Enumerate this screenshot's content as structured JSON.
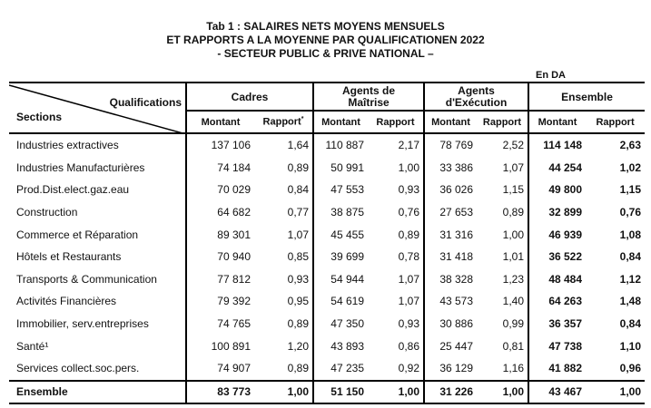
{
  "title": {
    "line1": "Tab 1 : SALAIRES NETS MOYENS MENSUELS",
    "line2": "ET RAPPORTS A LA MOYENNE PAR QUALIFICATIONEN 2022",
    "line3": "- SECTEUR PUBLIC & PRIVE NATIONAL –"
  },
  "unit": "En DA",
  "header": {
    "qualifications": "Qualifications",
    "sections": "Sections",
    "groups": [
      "Cadres",
      "Agents de\nMaîtrise",
      "Agents\nd'Exécution",
      "Ensemble"
    ],
    "montant": "Montant",
    "rapport": "Rapport",
    "rapport_note": "*"
  },
  "rows": [
    {
      "section": "Industries extractives",
      "v": [
        "137 106",
        "1,64",
        "110 887",
        "2,17",
        "78 769",
        "2,52",
        "114 148",
        "2,63"
      ]
    },
    {
      "section": "Industries Manufacturières",
      "v": [
        "74 184",
        "0,89",
        "50 991",
        "1,00",
        "33 386",
        "1,07",
        "44 254",
        "1,02"
      ]
    },
    {
      "section": "Prod.Dist.elect.gaz.eau",
      "v": [
        "70 029",
        "0,84",
        "47 553",
        "0,93",
        "36 026",
        "1,15",
        "49 800",
        "1,15"
      ]
    },
    {
      "section": "Construction",
      "v": [
        "64 682",
        "0,77",
        "38 875",
        "0,76",
        "27 653",
        "0,89",
        "32 899",
        "0,76"
      ]
    },
    {
      "section": "Commerce et Réparation",
      "v": [
        "89 301",
        "1,07",
        "45 455",
        "0,89",
        "31 316",
        "1,00",
        "46 939",
        "1,08"
      ]
    },
    {
      "section": "Hôtels et Restaurants",
      "v": [
        "70 940",
        "0,85",
        "39 699",
        "0,78",
        "31 418",
        "1,01",
        "36 522",
        "0,84"
      ]
    },
    {
      "section": "Transports & Communication",
      "v": [
        "77 812",
        "0,93",
        "54 944",
        "1,07",
        "38 328",
        "1,23",
        "48 484",
        "1,12"
      ]
    },
    {
      "section": "Activités Financières",
      "v": [
        "79 392",
        "0,95",
        "54 619",
        "1,07",
        "43 573",
        "1,40",
        "64 263",
        "1,48"
      ]
    },
    {
      "section": "Immobilier, serv.entreprises",
      "v": [
        "74 765",
        "0,89",
        "47 350",
        "0,93",
        "30 886",
        "0,99",
        "36 357",
        "0,84"
      ]
    },
    {
      "section": "Santé¹",
      "v": [
        "100 891",
        "1,20",
        "43 893",
        "0,86",
        "25 447",
        "0,81",
        "47 738",
        "1,10"
      ]
    },
    {
      "section": "Services collect.soc.pers.",
      "v": [
        "74 907",
        "0,89",
        "47 235",
        "0,92",
        "36 129",
        "1,16",
        "41 882",
        "0,96"
      ]
    }
  ],
  "total": {
    "section": "Ensemble",
    "v": [
      "83 773",
      "1,00",
      "51 150",
      "1,00",
      "31 226",
      "1,00",
      "43 467",
      "1,00"
    ]
  }
}
